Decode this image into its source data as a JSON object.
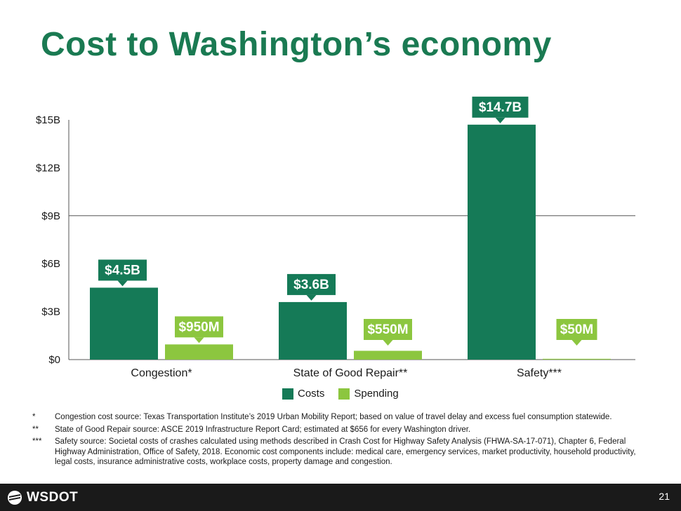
{
  "slide": {
    "title": "Cost to Washington’s economy",
    "page_number": "21",
    "logo_text": "WSDOT"
  },
  "colors": {
    "title": "#1a7a52",
    "costs": "#157a57",
    "spending": "#8cc63f",
    "footer": "#1a1a1a"
  },
  "legend": {
    "items": [
      {
        "label": "Costs",
        "color": "#157a57"
      },
      {
        "label": "Spending",
        "color": "#8cc63f"
      }
    ]
  },
  "chart_data": {
    "type": "bar",
    "categories": [
      "Congestion*",
      "State of Good Repair**",
      "Safety***"
    ],
    "series": [
      {
        "name": "Costs",
        "values": [
          4.5,
          3.6,
          14.7
        ],
        "labels": [
          "$4.5B",
          "$3.6B",
          "$14.7B"
        ]
      },
      {
        "name": "Spending",
        "values": [
          0.95,
          0.55,
          0.05
        ],
        "labels": [
          "$950M",
          "$550M",
          "$50M"
        ]
      }
    ],
    "y_ticks": [
      "$0",
      "$3B",
      "$6B",
      "$9B",
      "$12B",
      "$15B"
    ],
    "y_tick_values": [
      0,
      3,
      6,
      9,
      12,
      15
    ],
    "ylim": [
      0,
      15
    ],
    "reference_line": 9,
    "legend_position": "bottom"
  },
  "footnotes": [
    {
      "mark": "*",
      "text": "Congestion cost source: Texas Transportation Institute’s 2019 Urban Mobility Report; based on value of travel delay and excess fuel consumption statewide."
    },
    {
      "mark": "**",
      "text": "State of Good Repair source: ASCE 2019 Infrastructure Report Card; estimated at $656 for every Washington driver."
    },
    {
      "mark": "***",
      "text": "Safety source: Societal costs of crashes calculated using methods described in Crash Cost for Highway Safety Analysis (FHWA-SA-17-071), Chapter 6, Federal Highway Administration, Office of Safety, 2018. Economic cost components include: medical care, emergency services, market productivity, household productivity, legal costs, insurance administrative costs, workplace costs, property damage and congestion."
    }
  ]
}
